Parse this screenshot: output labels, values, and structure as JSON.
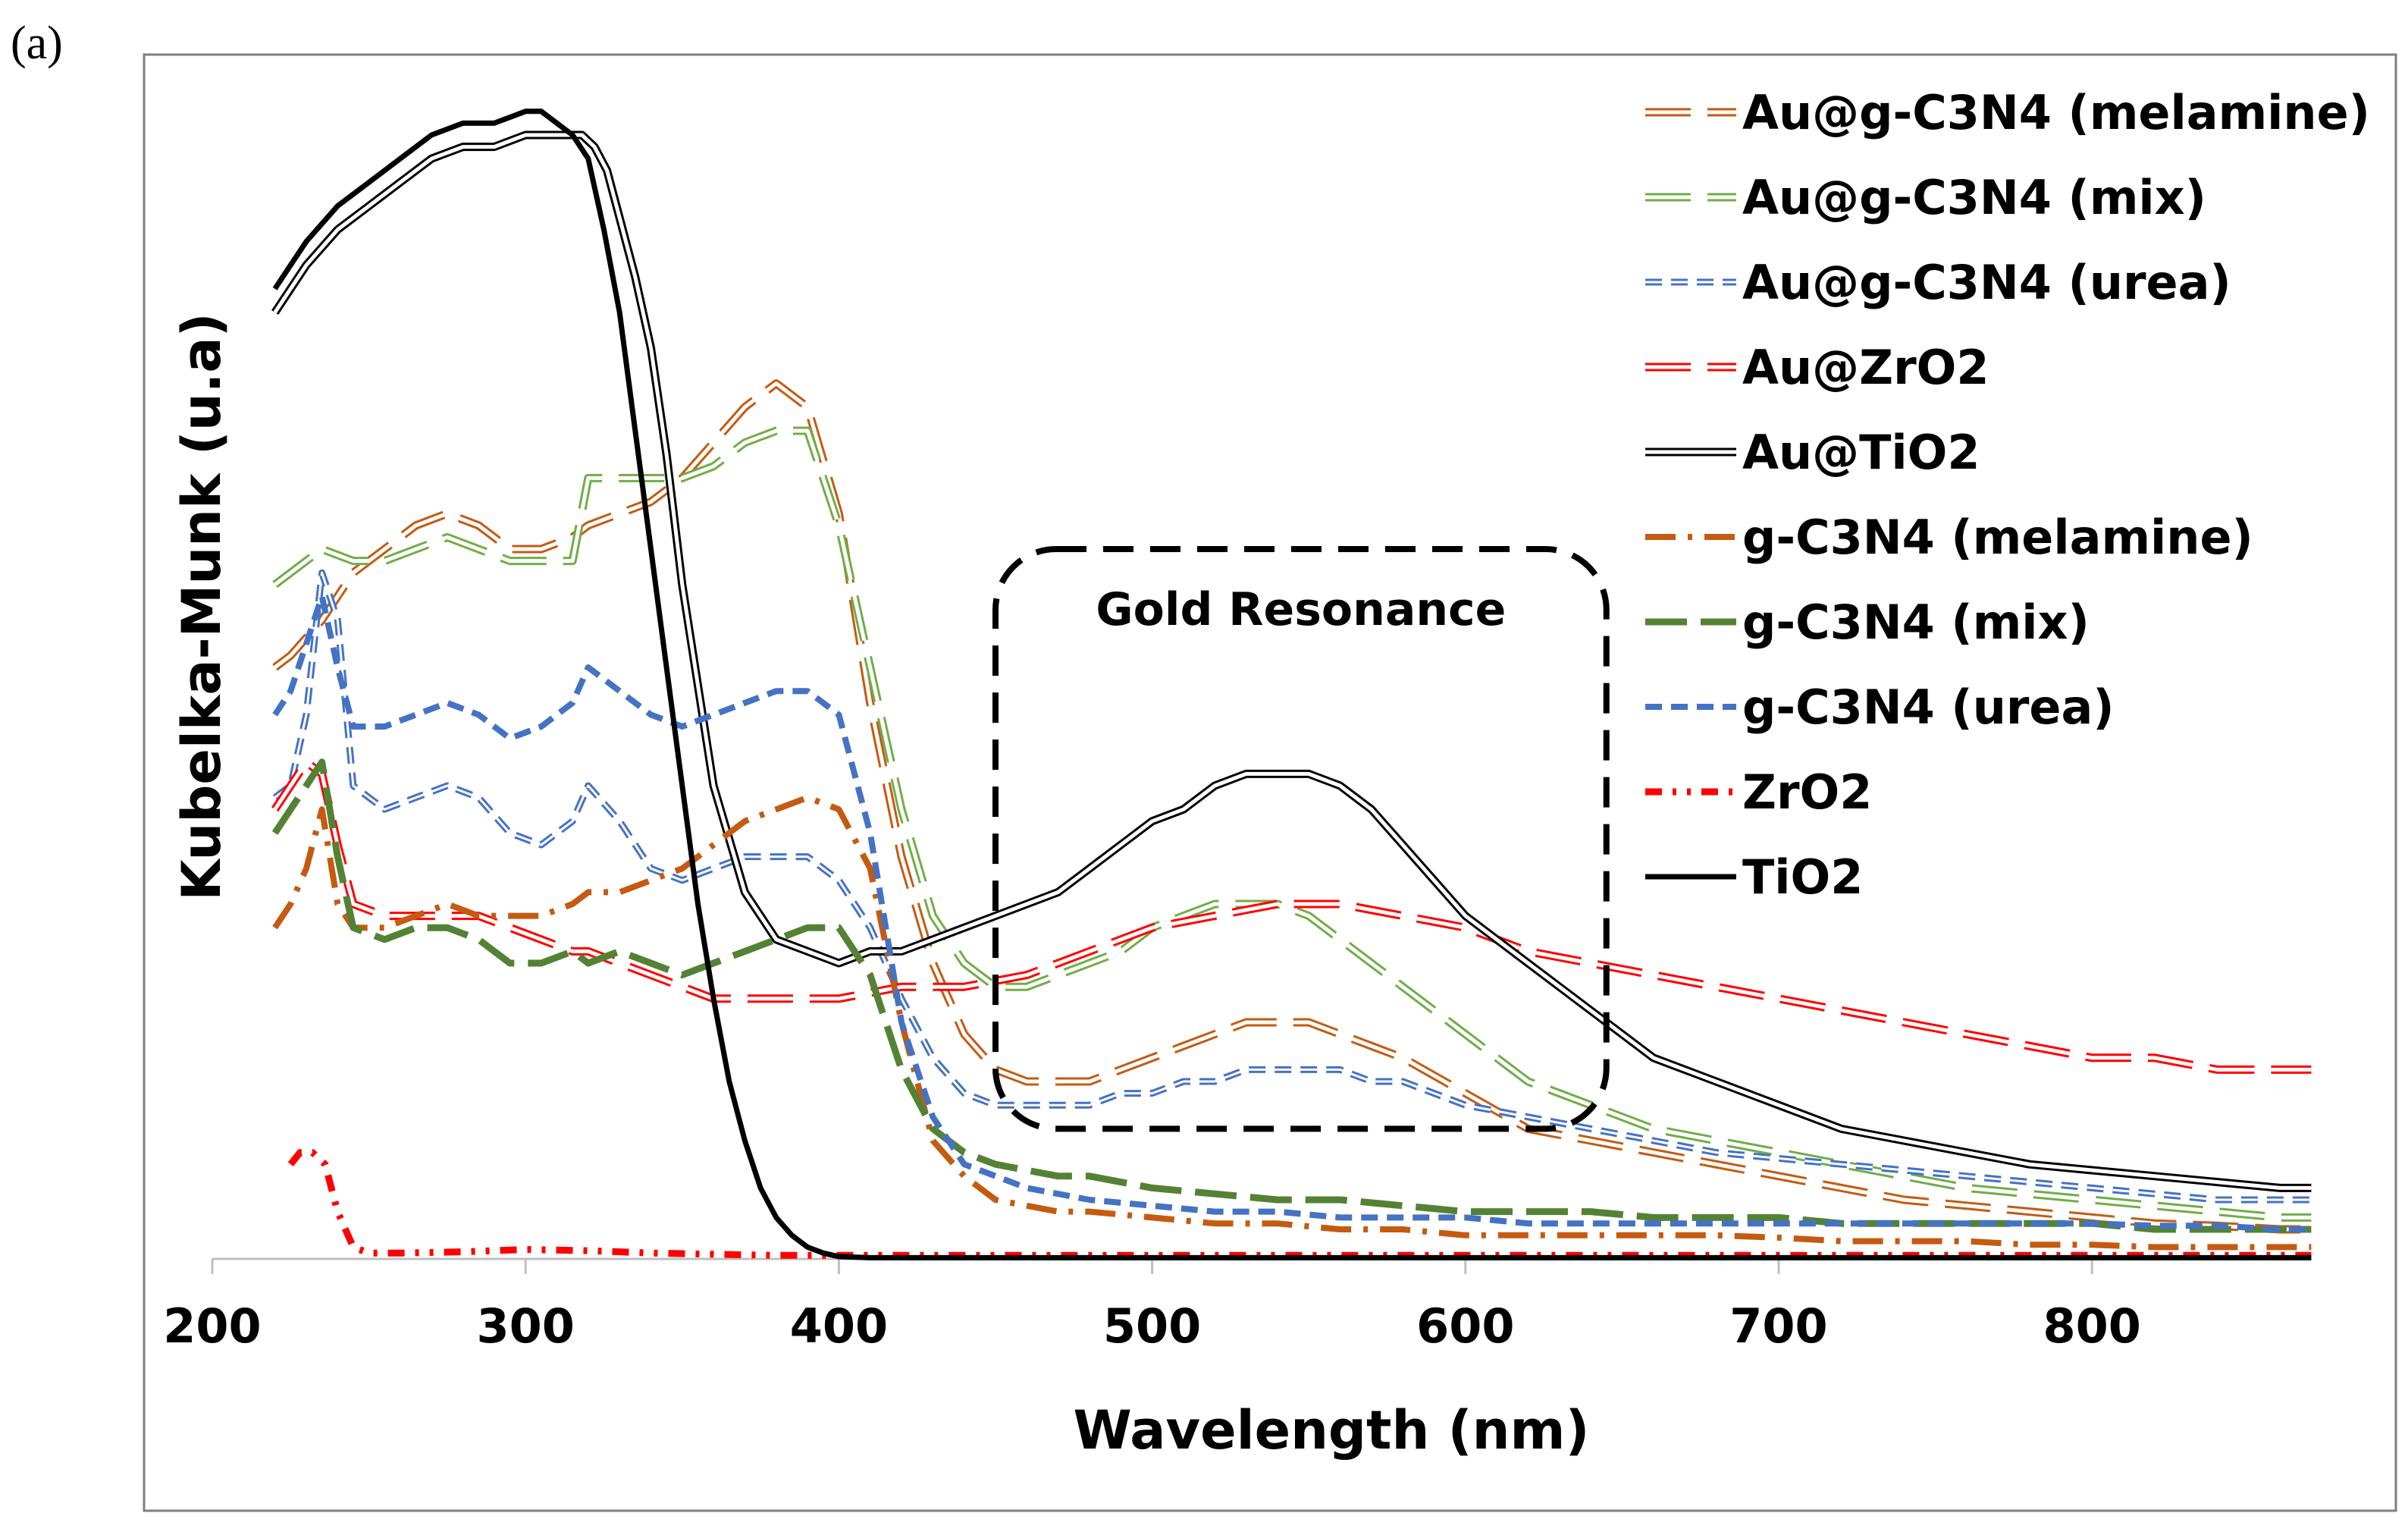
{
  "panel_label": "(a)",
  "chart_data": {
    "type": "line",
    "title": "",
    "xlabel": "Wavelength (nm)",
    "ylabel": "Kubelka-Munk (u.a)",
    "xlim": [
      200,
      870
    ],
    "ylim": [
      0,
      1.0
    ],
    "xticks": [
      200,
      300,
      400,
      500,
      600,
      700,
      800
    ],
    "grid": false,
    "legend_position": "right",
    "annotation": {
      "text": "Gold Resonance",
      "x_range": [
        450,
        645
      ],
      "y_range": [
        0.11,
        0.6
      ]
    },
    "series": [
      {
        "name": "Au@g-C3N4 (melamine)",
        "color": "#c55a11",
        "style": "double-longdash",
        "x": [
          220,
          225,
          235,
          245,
          255,
          265,
          275,
          285,
          295,
          305,
          315,
          320,
          330,
          340,
          350,
          360,
          370,
          380,
          390,
          400,
          410,
          420,
          430,
          440,
          450,
          460,
          470,
          480,
          490,
          500,
          510,
          520,
          530,
          540,
          550,
          560,
          570,
          580,
          600,
          620,
          640,
          660,
          680,
          700,
          720,
          740,
          760,
          780,
          800,
          820,
          840,
          860,
          870
        ],
        "y": [
          0.5,
          0.51,
          0.54,
          0.58,
          0.6,
          0.62,
          0.63,
          0.62,
          0.6,
          0.6,
          0.61,
          0.62,
          0.63,
          0.64,
          0.66,
          0.69,
          0.72,
          0.74,
          0.72,
          0.63,
          0.47,
          0.34,
          0.25,
          0.19,
          0.16,
          0.15,
          0.15,
          0.15,
          0.16,
          0.17,
          0.18,
          0.19,
          0.2,
          0.2,
          0.2,
          0.19,
          0.18,
          0.17,
          0.14,
          0.11,
          0.1,
          0.09,
          0.08,
          0.07,
          0.06,
          0.05,
          0.045,
          0.04,
          0.035,
          0.03,
          0.028,
          0.025,
          0.025
        ]
      },
      {
        "name": "Au@g-C3N4 (mix)",
        "color": "#70ad47",
        "style": "double-longdash",
        "x": [
          220,
          225,
          235,
          245,
          255,
          265,
          275,
          285,
          295,
          305,
          315,
          320,
          330,
          340,
          350,
          360,
          370,
          380,
          390,
          400,
          410,
          420,
          430,
          440,
          450,
          460,
          470,
          480,
          490,
          500,
          510,
          520,
          530,
          540,
          550,
          560,
          570,
          580,
          600,
          620,
          640,
          660,
          680,
          700,
          720,
          740,
          760,
          780,
          800,
          820,
          840,
          860,
          870
        ],
        "y": [
          0.57,
          0.58,
          0.6,
          0.59,
          0.59,
          0.6,
          0.61,
          0.6,
          0.59,
          0.59,
          0.59,
          0.66,
          0.66,
          0.66,
          0.66,
          0.67,
          0.69,
          0.7,
          0.7,
          0.62,
          0.5,
          0.38,
          0.29,
          0.25,
          0.23,
          0.23,
          0.24,
          0.25,
          0.26,
          0.28,
          0.29,
          0.3,
          0.3,
          0.3,
          0.29,
          0.27,
          0.25,
          0.23,
          0.19,
          0.15,
          0.13,
          0.11,
          0.1,
          0.09,
          0.08,
          0.07,
          0.06,
          0.055,
          0.05,
          0.045,
          0.04,
          0.035,
          0.035
        ]
      },
      {
        "name": "Au@g-C3N4 (urea)",
        "color": "#4472c4",
        "style": "double-dash",
        "x": [
          220,
          225,
          230,
          235,
          240,
          245,
          255,
          265,
          275,
          285,
          295,
          305,
          315,
          320,
          330,
          340,
          350,
          360,
          370,
          380,
          390,
          400,
          410,
          420,
          430,
          440,
          450,
          460,
          470,
          480,
          490,
          500,
          510,
          520,
          530,
          540,
          550,
          560,
          570,
          580,
          600,
          620,
          640,
          660,
          680,
          700,
          720,
          740,
          760,
          780,
          800,
          820,
          840,
          860,
          870
        ],
        "y": [
          0.39,
          0.4,
          0.46,
          0.58,
          0.54,
          0.4,
          0.38,
          0.39,
          0.4,
          0.39,
          0.36,
          0.35,
          0.37,
          0.4,
          0.37,
          0.33,
          0.32,
          0.33,
          0.34,
          0.34,
          0.34,
          0.32,
          0.28,
          0.22,
          0.17,
          0.14,
          0.13,
          0.13,
          0.13,
          0.13,
          0.14,
          0.14,
          0.15,
          0.15,
          0.16,
          0.16,
          0.16,
          0.16,
          0.15,
          0.15,
          0.13,
          0.12,
          0.11,
          0.1,
          0.09,
          0.085,
          0.08,
          0.075,
          0.07,
          0.065,
          0.06,
          0.055,
          0.05,
          0.05,
          0.05
        ]
      },
      {
        "name": "Au@ZrO2",
        "color": "#ff0000",
        "style": "double-longdash",
        "x": [
          220,
          225,
          230,
          235,
          240,
          245,
          255,
          265,
          275,
          285,
          295,
          305,
          315,
          320,
          330,
          340,
          350,
          360,
          370,
          380,
          390,
          400,
          420,
          440,
          460,
          480,
          500,
          520,
          540,
          560,
          580,
          600,
          620,
          640,
          660,
          680,
          700,
          720,
          740,
          760,
          780,
          800,
          820,
          840,
          860,
          870
        ],
        "y": [
          0.38,
          0.4,
          0.42,
          0.41,
          0.35,
          0.3,
          0.29,
          0.29,
          0.29,
          0.29,
          0.28,
          0.27,
          0.26,
          0.26,
          0.25,
          0.24,
          0.23,
          0.22,
          0.22,
          0.22,
          0.22,
          0.22,
          0.23,
          0.23,
          0.24,
          0.26,
          0.28,
          0.29,
          0.3,
          0.3,
          0.29,
          0.28,
          0.26,
          0.25,
          0.24,
          0.23,
          0.22,
          0.21,
          0.2,
          0.19,
          0.18,
          0.17,
          0.17,
          0.16,
          0.16,
          0.16
        ]
      },
      {
        "name": "Au@TiO2",
        "color": "#000000",
        "style": "double-solid",
        "x": [
          220,
          225,
          230,
          240,
          250,
          260,
          270,
          280,
          290,
          300,
          310,
          318,
          322,
          326,
          330,
          335,
          340,
          345,
          350,
          360,
          370,
          380,
          390,
          400,
          410,
          420,
          430,
          440,
          450,
          460,
          470,
          480,
          490,
          500,
          510,
          520,
          530,
          540,
          550,
          560,
          570,
          580,
          590,
          600,
          620,
          640,
          660,
          680,
          700,
          720,
          740,
          760,
          780,
          800,
          820,
          840,
          860,
          870
        ],
        "y": [
          0.8,
          0.82,
          0.84,
          0.87,
          0.89,
          0.91,
          0.93,
          0.94,
          0.94,
          0.95,
          0.95,
          0.95,
          0.94,
          0.92,
          0.88,
          0.83,
          0.77,
          0.68,
          0.57,
          0.4,
          0.31,
          0.27,
          0.26,
          0.25,
          0.26,
          0.26,
          0.27,
          0.28,
          0.29,
          0.3,
          0.31,
          0.33,
          0.35,
          0.37,
          0.38,
          0.4,
          0.41,
          0.41,
          0.41,
          0.4,
          0.38,
          0.35,
          0.32,
          0.29,
          0.25,
          0.21,
          0.17,
          0.15,
          0.13,
          0.11,
          0.1,
          0.09,
          0.08,
          0.075,
          0.07,
          0.065,
          0.06,
          0.06
        ]
      },
      {
        "name": "g-C3N4 (melamine)",
        "color": "#c55a11",
        "style": "dashdot",
        "x": [
          220,
          225,
          230,
          235,
          240,
          245,
          255,
          265,
          275,
          285,
          295,
          305,
          315,
          320,
          330,
          340,
          350,
          360,
          370,
          380,
          390,
          400,
          410,
          420,
          430,
          440,
          450,
          460,
          470,
          480,
          500,
          520,
          540,
          560,
          580,
          600,
          620,
          640,
          660,
          680,
          700,
          720,
          740,
          760,
          780,
          800,
          820,
          840,
          860,
          870
        ],
        "y": [
          0.28,
          0.3,
          0.33,
          0.38,
          0.3,
          0.28,
          0.28,
          0.29,
          0.3,
          0.29,
          0.29,
          0.29,
          0.3,
          0.31,
          0.31,
          0.32,
          0.33,
          0.35,
          0.37,
          0.38,
          0.39,
          0.38,
          0.33,
          0.2,
          0.1,
          0.07,
          0.05,
          0.045,
          0.04,
          0.04,
          0.035,
          0.03,
          0.03,
          0.025,
          0.025,
          0.02,
          0.02,
          0.02,
          0.02,
          0.02,
          0.018,
          0.015,
          0.015,
          0.015,
          0.012,
          0.012,
          0.01,
          0.01,
          0.01,
          0.01
        ]
      },
      {
        "name": "g-C3N4 (mix)",
        "color": "#548235",
        "style": "longdash",
        "x": [
          220,
          225,
          230,
          235,
          240,
          245,
          255,
          265,
          275,
          285,
          295,
          305,
          315,
          320,
          330,
          340,
          350,
          360,
          370,
          380,
          390,
          400,
          410,
          420,
          430,
          440,
          450,
          460,
          470,
          480,
          500,
          520,
          540,
          560,
          580,
          600,
          620,
          640,
          660,
          680,
          700,
          720,
          740,
          760,
          780,
          800,
          820,
          840,
          860,
          870
        ],
        "y": [
          0.36,
          0.38,
          0.4,
          0.42,
          0.34,
          0.28,
          0.27,
          0.28,
          0.28,
          0.27,
          0.25,
          0.25,
          0.26,
          0.25,
          0.26,
          0.25,
          0.24,
          0.25,
          0.26,
          0.27,
          0.28,
          0.28,
          0.24,
          0.16,
          0.11,
          0.09,
          0.08,
          0.075,
          0.07,
          0.07,
          0.06,
          0.055,
          0.05,
          0.05,
          0.045,
          0.04,
          0.04,
          0.04,
          0.035,
          0.035,
          0.035,
          0.03,
          0.03,
          0.03,
          0.03,
          0.03,
          0.025,
          0.025,
          0.025,
          0.025
        ]
      },
      {
        "name": "g-C3N4 (urea)",
        "color": "#4472c4",
        "style": "dash",
        "x": [
          220,
          225,
          230,
          235,
          240,
          245,
          255,
          265,
          275,
          285,
          295,
          305,
          315,
          320,
          330,
          340,
          350,
          360,
          370,
          380,
          390,
          400,
          410,
          420,
          430,
          440,
          450,
          460,
          470,
          480,
          500,
          520,
          540,
          560,
          580,
          600,
          620,
          640,
          660,
          680,
          700,
          720,
          740,
          760,
          780,
          800,
          820,
          840,
          860,
          870
        ],
        "y": [
          0.46,
          0.48,
          0.52,
          0.56,
          0.5,
          0.45,
          0.45,
          0.46,
          0.47,
          0.46,
          0.44,
          0.45,
          0.47,
          0.5,
          0.48,
          0.46,
          0.45,
          0.46,
          0.47,
          0.48,
          0.48,
          0.46,
          0.36,
          0.2,
          0.12,
          0.08,
          0.07,
          0.06,
          0.055,
          0.05,
          0.045,
          0.04,
          0.04,
          0.035,
          0.035,
          0.035,
          0.03,
          0.03,
          0.03,
          0.03,
          0.03,
          0.03,
          0.03,
          0.03,
          0.03,
          0.03,
          0.028,
          0.028,
          0.025,
          0.025
        ]
      },
      {
        "name": "ZrO2",
        "color": "#ff0000",
        "style": "dashdotdot",
        "x": [
          225,
          228,
          232,
          236,
          240,
          245,
          250,
          260,
          280,
          300,
          320,
          340,
          360,
          380,
          400,
          450,
          500,
          550,
          600,
          650,
          700,
          750,
          800,
          850,
          870
        ],
        "y": [
          0.08,
          0.09,
          0.09,
          0.08,
          0.04,
          0.01,
          0.005,
          0.005,
          0.006,
          0.008,
          0.007,
          0.005,
          0.004,
          0.003,
          0.003,
          0.003,
          0.003,
          0.003,
          0.003,
          0.003,
          0.003,
          0.003,
          0.003,
          0.003,
          0.003
        ]
      },
      {
        "name": "TiO2",
        "color": "#000000",
        "style": "solid",
        "x": [
          220,
          225,
          230,
          240,
          250,
          260,
          270,
          280,
          290,
          300,
          305,
          310,
          315,
          320,
          325,
          330,
          335,
          340,
          345,
          350,
          355,
          360,
          365,
          370,
          375,
          380,
          385,
          390,
          395,
          400,
          410,
          420,
          450,
          500,
          550,
          600,
          650,
          700,
          750,
          800,
          850,
          870
        ],
        "y": [
          0.82,
          0.84,
          0.86,
          0.89,
          0.91,
          0.93,
          0.95,
          0.96,
          0.96,
          0.97,
          0.97,
          0.96,
          0.95,
          0.93,
          0.87,
          0.8,
          0.7,
          0.6,
          0.5,
          0.4,
          0.3,
          0.22,
          0.15,
          0.1,
          0.06,
          0.035,
          0.02,
          0.01,
          0.005,
          0.002,
          0.001,
          0.001,
          0.001,
          0.001,
          0.001,
          0.001,
          0.001,
          0.001,
          0.001,
          0.001,
          0.001,
          0.001
        ]
      }
    ]
  }
}
